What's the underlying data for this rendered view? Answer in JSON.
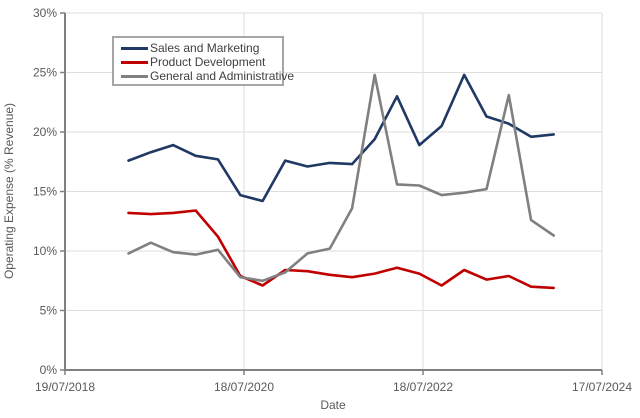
{
  "chart_data": {
    "type": "line",
    "xlabel": "Date",
    "ylabel": "Operating Expense (% Revenue)",
    "ylim": [
      0,
      30
    ],
    "grid": true,
    "legend_position": "top-left-inside",
    "y_tick_values": [
      0,
      5,
      10,
      15,
      20,
      25,
      30
    ],
    "y_tick_labels": [
      "0%",
      "5%",
      "10%",
      "15%",
      "20%",
      "25%",
      "30%"
    ],
    "x_tick_labels": [
      "19/07/2018",
      "18/07/2020",
      "18/07/2022",
      "17/07/2024"
    ],
    "x_tick_days": [
      0,
      730,
      1460,
      2190
    ],
    "x_range_days": [
      0,
      2190
    ],
    "x_dates": [
      "04/2019",
      "07/2019",
      "10/2019",
      "01/2020",
      "04/2020",
      "07/2020",
      "10/2020",
      "01/2021",
      "04/2021",
      "07/2021",
      "10/2021",
      "01/2022",
      "04/2022",
      "07/2022",
      "10/2022",
      "01/2023",
      "04/2023",
      "07/2023",
      "10/2023",
      "01/2024"
    ],
    "x_days": [
      259,
      350,
      441,
      533,
      624,
      715,
      806,
      898,
      989,
      1080,
      1171,
      1263,
      1354,
      1445,
      1536,
      1628,
      1719,
      1810,
      1901,
      1993
    ],
    "series": [
      {
        "name": "Sales and Marketing",
        "color": "#1F3864",
        "values": [
          17.6,
          18.3,
          18.9,
          18.0,
          17.7,
          14.7,
          14.2,
          17.6,
          17.1,
          17.4,
          17.3,
          19.4,
          23.0,
          18.9,
          20.5,
          24.8,
          21.3,
          20.7,
          19.6,
          19.8
        ]
      },
      {
        "name": "Product Development",
        "color": "#C00000",
        "values": [
          13.2,
          13.1,
          13.2,
          13.4,
          11.2,
          7.9,
          7.1,
          8.4,
          8.3,
          8.0,
          7.8,
          8.1,
          8.6,
          8.1,
          7.1,
          8.4,
          7.6,
          7.9,
          7.0,
          6.9
        ]
      },
      {
        "name": "General and Administrative",
        "color": "#808080",
        "values": [
          9.8,
          10.7,
          9.9,
          9.7,
          10.1,
          7.8,
          7.5,
          8.2,
          9.8,
          10.2,
          13.6,
          24.8,
          15.6,
          15.5,
          14.7,
          14.9,
          15.2,
          23.1,
          12.6,
          11.3
        ]
      }
    ],
    "colors": {
      "axis_line": "#808080",
      "gridline": "#DEDEDE",
      "tick_text": "#595959",
      "legend_border": "#A6A6A6",
      "legend_text": "#404040"
    }
  }
}
